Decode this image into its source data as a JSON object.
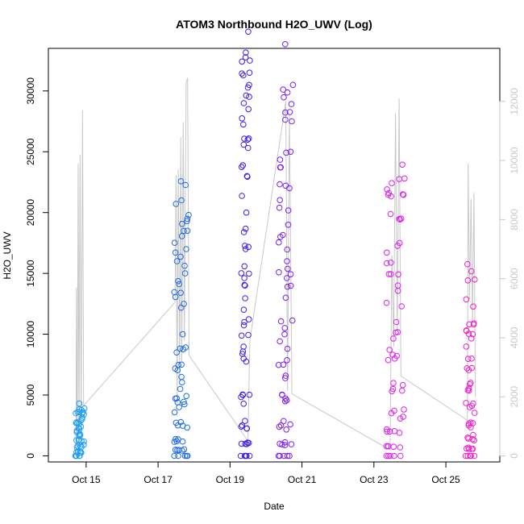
{
  "chart_data": {
    "type": "scatter",
    "title": "ATOM3 Northbound H2O_UWV (Log)",
    "xlabel": "Date",
    "ylabel": "H2O_UWV",
    "x_ticks": [
      "Oct 15",
      "Oct 17",
      "Oct 19",
      "Oct 21",
      "Oct 23",
      "Oct 25"
    ],
    "x_tick_days": [
      15,
      17,
      19,
      21,
      23,
      25
    ],
    "x_range_days": [
      13.95,
      26.5
    ],
    "y_ticks": [
      0,
      5000,
      10000,
      15000,
      20000,
      25000,
      30000
    ],
    "ylim": [
      -500,
      33500
    ],
    "y2_ticks": [
      0,
      2000,
      4000,
      6000,
      8000,
      10000,
      12000
    ],
    "y2lim": [
      -206,
      13796
    ],
    "grid": false,
    "series": [
      {
        "color": "#1e9ef2",
        "day_start": 14.7,
        "day_end": 14.95,
        "values": [
          0,
          300,
          800,
          1300,
          1800,
          2400,
          3000,
          3600,
          3900
        ]
      },
      {
        "color": "#1e6ae6",
        "day_start": 17.45,
        "day_end": 17.85,
        "values": [
          0,
          500,
          1200,
          2500,
          4000,
          5500,
          7500,
          10000,
          12500,
          15000,
          17000,
          18500,
          19800
        ]
      },
      {
        "color": "#3a1ef0",
        "day_start": 19.3,
        "day_end": 19.55,
        "values": [
          0,
          1000,
          2500,
          5000,
          8000,
          11000,
          14000,
          17000,
          20000,
          23000,
          26000,
          28500,
          30500,
          32500
        ]
      },
      {
        "color": "#7a1ef0",
        "day_start": 20.35,
        "day_end": 20.75,
        "values": [
          0,
          1000,
          2500,
          5000,
          7500,
          10000,
          13000,
          16000,
          19000,
          22000,
          25000,
          27500,
          30500
        ]
      },
      {
        "color": "#df1ef0",
        "day_start": 23.35,
        "day_end": 23.85,
        "values": [
          0,
          800,
          2000,
          3500,
          5500,
          8000,
          11000,
          14000,
          17500,
          19500,
          21500,
          22800
        ]
      },
      {
        "color": "#f01ecc",
        "day_start": 25.55,
        "day_end": 25.8,
        "values": [
          0,
          600,
          1500,
          2500,
          4000,
          6000,
          8000,
          10000,
          10800,
          14500
        ]
      }
    ],
    "secondary_line": {
      "color": "#c8c8c8",
      "points": [
        [
          14.72,
          100
        ],
        [
          14.73,
          5700
        ],
        [
          14.75,
          200
        ],
        [
          14.78,
          9900
        ],
        [
          14.8,
          300
        ],
        [
          14.83,
          10200
        ],
        [
          14.86,
          400
        ],
        [
          14.9,
          11700
        ],
        [
          14.93,
          1700
        ],
        [
          17.47,
          5200
        ],
        [
          17.5,
          9500
        ],
        [
          17.53,
          1800
        ],
        [
          17.56,
          9700
        ],
        [
          17.6,
          2600
        ],
        [
          17.63,
          10800
        ],
        [
          17.66,
          3200
        ],
        [
          17.7,
          11300
        ],
        [
          17.73,
          3900
        ],
        [
          17.78,
          12600
        ],
        [
          17.82,
          12800
        ],
        [
          17.86,
          3400
        ],
        [
          19.5,
          500
        ],
        [
          19.55,
          3900
        ],
        [
          20.55,
          12000
        ],
        [
          20.6,
          2200
        ],
        [
          20.65,
          11600
        ],
        [
          20.72,
          2100
        ],
        [
          23.45,
          200
        ],
        [
          23.5,
          6800
        ],
        [
          23.55,
          3700
        ],
        [
          23.6,
          11600
        ],
        [
          23.65,
          4200
        ],
        [
          23.7,
          12100
        ],
        [
          23.75,
          2700
        ],
        [
          25.6,
          1200
        ],
        [
          25.62,
          9900
        ],
        [
          25.66,
          5300
        ],
        [
          25.7,
          8700
        ],
        [
          25.74,
          4500
        ],
        [
          25.78,
          8900
        ],
        [
          25.82,
          2000
        ]
      ]
    }
  }
}
